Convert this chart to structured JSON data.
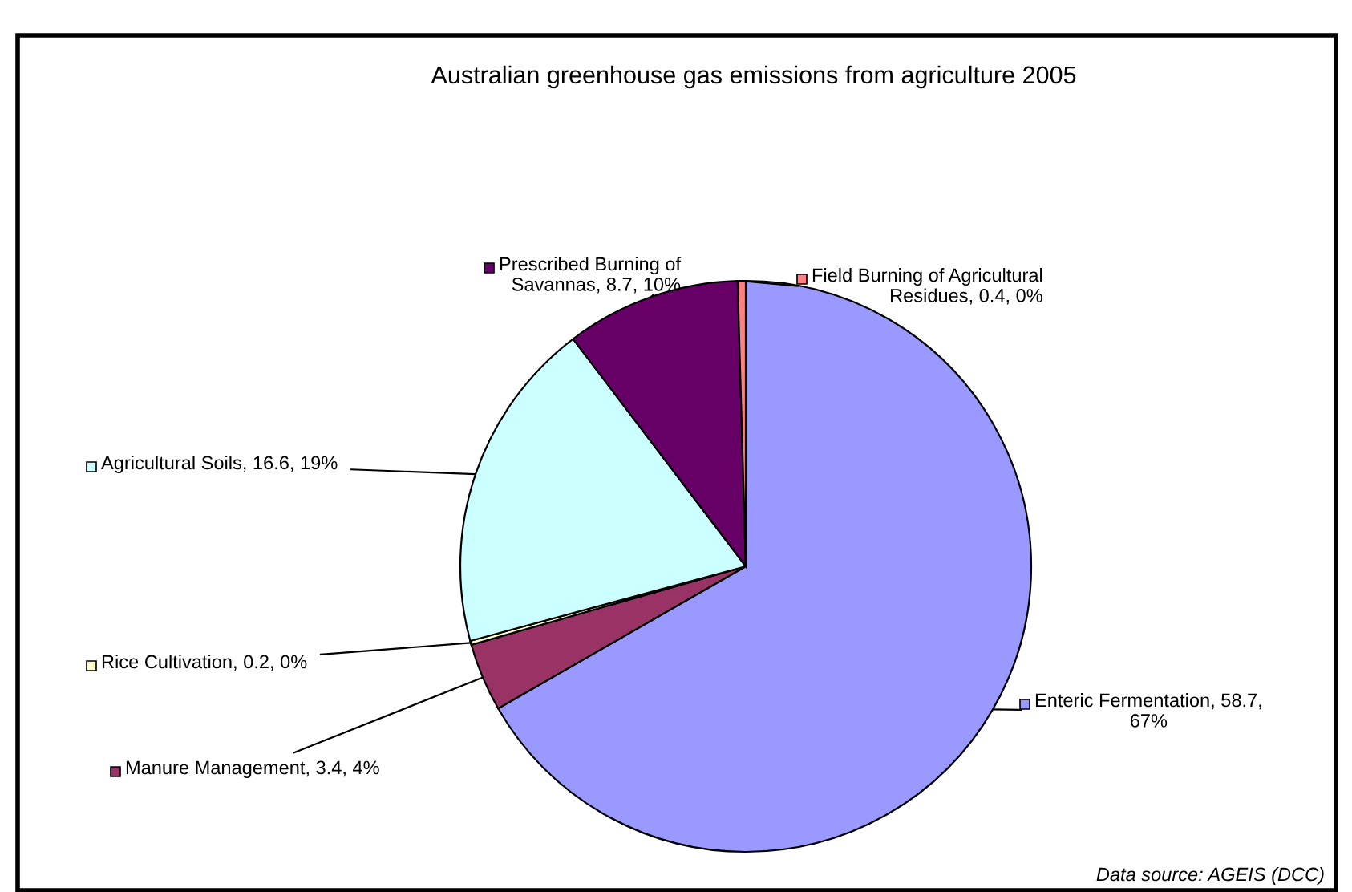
{
  "chart_data": {
    "type": "pie",
    "title": "Australian greenhouse gas emissions from agriculture 2005",
    "categories": [
      "Enteric Fermentation",
      "Manure Management",
      "Rice Cultivation",
      "Agricultural Soils",
      "Prescribed Burning of Savannas",
      "Field Burning of Agricultural Residues"
    ],
    "values": [
      58.7,
      3.4,
      0.2,
      16.6,
      8.7,
      0.4
    ],
    "colors": [
      "#9999ff",
      "#993366",
      "#ffffcc",
      "#ccffff",
      "#660066",
      "#ff8080"
    ],
    "value_labels": [
      "58.7, 67%",
      "3.4, 4%",
      "0.2, 0%",
      "16.6, 19%",
      "8.7, 10%",
      "0.4, 0%"
    ],
    "legend": "left",
    "annotations": [
      "Data source: AGEIS (DCC)"
    ]
  }
}
